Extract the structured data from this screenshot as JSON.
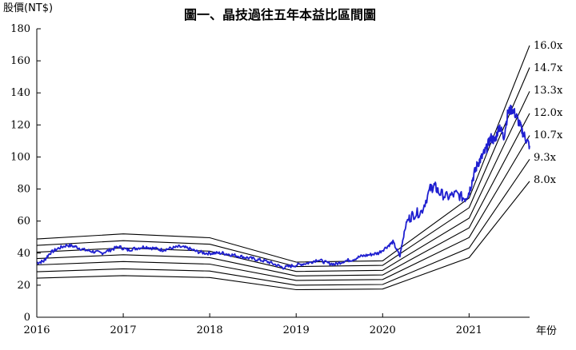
{
  "chart_data": {
    "type": "line",
    "title": "圖一、晶技過往五年本益比區間圖",
    "ylabel": "股價(NT$)",
    "xlabel": "年份",
    "ylim": [
      0,
      180
    ],
    "yticks": [
      0,
      20,
      40,
      60,
      80,
      100,
      120,
      140,
      160,
      180
    ],
    "xlim": [
      2016,
      2021.7
    ],
    "xticks": [
      2016,
      2017,
      2018,
      2019,
      2020,
      2021
    ],
    "grid": false,
    "pe_bands": {
      "x": [
        2016,
        2017,
        2018,
        2019,
        2020,
        2021,
        2021.7
      ],
      "eps": [
        3.05,
        3.25,
        3.1,
        2.15,
        2.2,
        4.65,
        10.6
      ],
      "multiples": [
        {
          "name": "16.0x",
          "value": 16.0
        },
        {
          "name": "14.7x",
          "value": 14.7
        },
        {
          "name": "13.3x",
          "value": 13.3
        },
        {
          "name": "12.0x",
          "value": 12.0
        },
        {
          "name": "10.7x",
          "value": 10.7
        },
        {
          "name": "9.3x",
          "value": 9.3
        },
        {
          "name": "8.0x",
          "value": 8.0
        }
      ],
      "color": "#000000"
    },
    "price_series": {
      "color": "#1f1fd0",
      "x": [
        2016.0,
        2016.08,
        2016.15,
        2016.25,
        2016.35,
        2016.45,
        2016.55,
        2016.65,
        2016.75,
        2016.85,
        2016.95,
        2017.05,
        2017.15,
        2017.25,
        2017.35,
        2017.45,
        2017.55,
        2017.65,
        2017.75,
        2017.85,
        2017.95,
        2018.05,
        2018.15,
        2018.25,
        2018.35,
        2018.45,
        2018.55,
        2018.65,
        2018.75,
        2018.85,
        2018.95,
        2019.05,
        2019.15,
        2019.25,
        2019.35,
        2019.45,
        2019.55,
        2019.65,
        2019.75,
        2019.85,
        2019.95,
        2020.05,
        2020.12,
        2020.2,
        2020.22,
        2020.28,
        2020.35,
        2020.45,
        2020.55,
        2020.6,
        2020.65,
        2020.75,
        2020.85,
        2020.95,
        2021.0,
        2021.05,
        2021.1,
        2021.15,
        2021.2,
        2021.25,
        2021.3,
        2021.35,
        2021.4,
        2021.45,
        2021.5,
        2021.55,
        2021.6,
        2021.65,
        2021.7
      ],
      "y": [
        34,
        35,
        40,
        43,
        45,
        44,
        42,
        41,
        40,
        42,
        44,
        42,
        43,
        44,
        43,
        42,
        43,
        44,
        43,
        41,
        40,
        40,
        40,
        39,
        38,
        37,
        36,
        35,
        33,
        31,
        32,
        33,
        34,
        36,
        34,
        33,
        35,
        36,
        38,
        39,
        40,
        44,
        47,
        38,
        45,
        60,
        64,
        66,
        80,
        82,
        78,
        75,
        77,
        74,
        78,
        88,
        96,
        100,
        105,
        112,
        110,
        120,
        112,
        128,
        130,
        125,
        118,
        112,
        107
      ]
    }
  }
}
